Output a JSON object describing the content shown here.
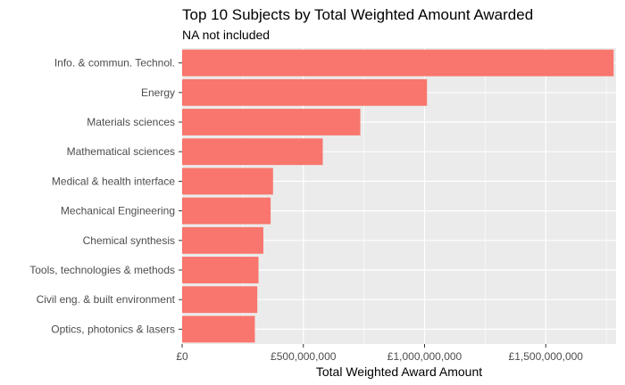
{
  "chart_data": {
    "type": "bar",
    "orientation": "horizontal",
    "title": "Top 10 Subjects by Total Weighted Amount Awarded",
    "subtitle": "NA not included",
    "xlabel": "Total Weighted Award Amount",
    "ylabel": "",
    "categories": [
      "Info. & commun. Technol.",
      "Energy",
      "Materials sciences",
      "Mathematical sciences",
      "Medical & health interface",
      "Mechanical Engineering",
      "Chemical synthesis",
      "Tools, technologies & methods",
      "Civil eng. & built environment",
      "Optics, photonics & lasers"
    ],
    "values": [
      1780000000,
      1010000000,
      735000000,
      580000000,
      375000000,
      365000000,
      335000000,
      315000000,
      310000000,
      300000000
    ],
    "xlim": [
      0,
      1790000000
    ],
    "ticks": [
      0,
      500000000,
      1000000000,
      1500000000
    ],
    "tick_labels": [
      "£0",
      "£500,000,000",
      "£1,000,000,000",
      "£1,500,000,000"
    ],
    "bar_color": "#F8766D",
    "panel_color": "#EBEBEB",
    "grid": true,
    "legend": "none"
  }
}
